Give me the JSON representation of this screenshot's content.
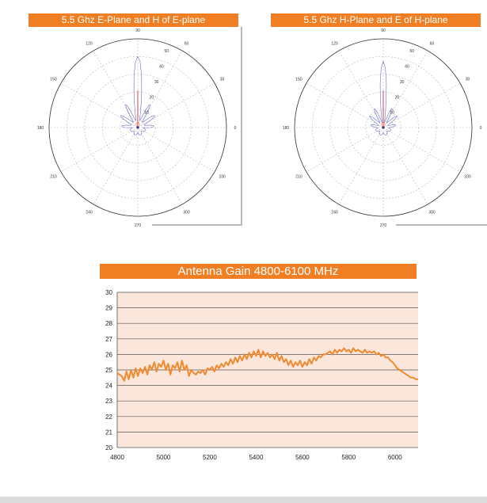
{
  "chart_data": [
    {
      "type": "polar",
      "title": "5.5 Ghz E-Plane and H of E-plane",
      "angle_labels": [
        "0",
        "30",
        "60",
        "90",
        "120",
        "150",
        "180",
        "210",
        "240",
        "270",
        "300",
        "330"
      ],
      "radial_labels": [
        "10",
        "20",
        "30",
        "40",
        "50"
      ],
      "rmax": 55,
      "series": [
        {
          "color": "#6a6fc4",
          "pattern": "e-plane"
        },
        {
          "color": "#e06060",
          "pattern": "h-of-e-plane"
        }
      ]
    },
    {
      "type": "polar",
      "title": "5.5 Ghz H-Plane and E of H-plane",
      "angle_labels": [
        "0",
        "30",
        "60",
        "90",
        "120",
        "150",
        "180",
        "210",
        "240",
        "270",
        "300",
        "330"
      ],
      "radial_labels": [
        "10",
        "20",
        "30",
        "40",
        "50"
      ],
      "rmax": 55,
      "series": [
        {
          "color": "#6a6fc4",
          "pattern": "h-plane"
        },
        {
          "color": "#e06060",
          "pattern": "e-of-h-plane"
        }
      ]
    },
    {
      "type": "line",
      "title": "Antenna Gain 4800-6100 MHz",
      "xlim": [
        4800,
        6100
      ],
      "ylim": [
        20,
        30
      ],
      "xticks": [
        "4800",
        "5000",
        "5200",
        "5400",
        "5600",
        "5800",
        "6000"
      ],
      "yticks": [
        "20",
        "21",
        "22",
        "23",
        "24",
        "25",
        "26",
        "27",
        "28",
        "29",
        "30"
      ],
      "grid": true,
      "series": [
        {
          "color": "#f08a2e",
          "x": [
            4800,
            4810,
            4820,
            4830,
            4840,
            4850,
            4860,
            4870,
            4880,
            4890,
            4900,
            4910,
            4920,
            4930,
            4940,
            4950,
            4960,
            4970,
            4980,
            4990,
            5000,
            5010,
            5020,
            5030,
            5040,
            5050,
            5060,
            5070,
            5080,
            5090,
            5100,
            5110,
            5120,
            5130,
            5140,
            5150,
            5160,
            5170,
            5180,
            5190,
            5200,
            5210,
            5220,
            5230,
            5240,
            5250,
            5260,
            5270,
            5280,
            5290,
            5300,
            5310,
            5320,
            5330,
            5340,
            5350,
            5360,
            5370,
            5380,
            5390,
            5400,
            5410,
            5420,
            5430,
            5440,
            5450,
            5460,
            5470,
            5480,
            5490,
            5500,
            5510,
            5520,
            5530,
            5540,
            5550,
            5560,
            5570,
            5580,
            5590,
            5600,
            5610,
            5620,
            5630,
            5640,
            5650,
            5660,
            5670,
            5680,
            5690,
            5700,
            5710,
            5720,
            5730,
            5740,
            5750,
            5760,
            5770,
            5780,
            5790,
            5800,
            5810,
            5820,
            5830,
            5840,
            5850,
            5860,
            5870,
            5880,
            5890,
            5900,
            5910,
            5920,
            5930,
            5940,
            5950,
            5960,
            5970,
            5980,
            5990,
            6000,
            6010,
            6020,
            6030,
            6040,
            6050,
            6060,
            6070,
            6080,
            6090,
            6100
          ],
          "y": [
            24.8,
            24.7,
            24.6,
            24.3,
            24.9,
            24.4,
            25.0,
            24.5,
            25.1,
            24.6,
            25.1,
            24.8,
            25.2,
            24.7,
            25.3,
            25.0,
            25.5,
            24.9,
            25.4,
            25.2,
            25.6,
            25.0,
            25.4,
            24.7,
            25.3,
            25.1,
            25.5,
            24.9,
            25.6,
            25.0,
            25.3,
            24.6,
            25.0,
            24.8,
            24.7,
            24.9,
            24.8,
            25.0,
            24.7,
            25.1,
            25.0,
            25.2,
            24.9,
            25.3,
            25.1,
            25.4,
            25.2,
            25.5,
            25.3,
            25.7,
            25.4,
            25.8,
            25.5,
            25.9,
            25.6,
            26.0,
            25.7,
            26.1,
            25.8,
            26.2,
            25.9,
            26.3,
            25.8,
            26.2,
            25.9,
            26.1,
            25.8,
            26.0,
            25.7,
            26.1,
            25.6,
            25.9,
            25.5,
            25.7,
            25.3,
            25.6,
            25.2,
            25.5,
            25.3,
            25.6,
            25.2,
            25.5,
            25.3,
            25.7,
            25.4,
            25.8,
            25.6,
            25.9,
            25.8,
            26.0,
            26.0,
            26.1,
            26.2,
            26.0,
            26.3,
            26.1,
            26.3,
            26.2,
            26.4,
            26.2,
            26.3,
            26.1,
            26.4,
            26.2,
            26.3,
            26.2,
            26.1,
            26.3,
            26.1,
            26.2,
            26.1,
            26.2,
            26.0,
            26.1,
            25.9,
            26.0,
            25.8,
            25.8,
            25.6,
            25.5,
            25.3,
            25.1,
            25.0,
            24.9,
            24.8,
            24.7,
            24.6,
            24.5,
            24.5,
            24.4,
            24.4
          ]
        }
      ]
    }
  ]
}
